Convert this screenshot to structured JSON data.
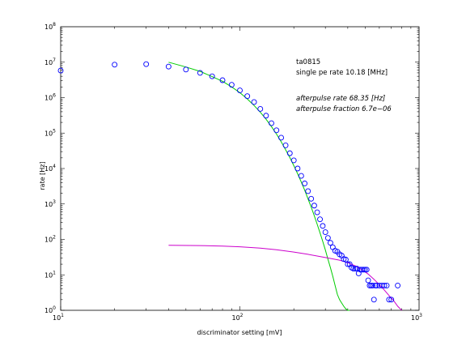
{
  "chart_data": {
    "type": "scatter",
    "xscale": "log",
    "yscale": "log",
    "xlim": [
      10,
      1000
    ],
    "ylim": [
      1,
      100000000
    ],
    "grid": false,
    "xlabel": "discriminator setting [mV]",
    "ylabel": "rate [Hz]",
    "x_ticks": [
      {
        "base": "10",
        "exp": "1",
        "value": 10
      },
      {
        "base": "10",
        "exp": "2",
        "value": 100
      },
      {
        "base": "10",
        "exp": "3",
        "value": 1000
      }
    ],
    "y_ticks": [
      {
        "base": "10",
        "exp": "0",
        "value": 1
      },
      {
        "base": "10",
        "exp": "1",
        "value": 10
      },
      {
        "base": "10",
        "exp": "2",
        "value": 100
      },
      {
        "base": "10",
        "exp": "3",
        "value": 1000
      },
      {
        "base": "10",
        "exp": "4",
        "value": 10000
      },
      {
        "base": "10",
        "exp": "5",
        "value": 100000
      },
      {
        "base": "10",
        "exp": "6",
        "value": 1000000
      },
      {
        "base": "10",
        "exp": "7",
        "value": 10000000
      },
      {
        "base": "10",
        "exp": "8",
        "value": 100000000
      }
    ],
    "annotations": [
      {
        "text": "ta0815",
        "italic": false
      },
      {
        "text": "single pe rate 10.18 [MHz]",
        "italic": false
      },
      {
        "text": "afterpulse rate 68.35 [Hz]",
        "italic": true
      },
      {
        "text": "afterpulse fraction 6.7e−06",
        "italic": true
      }
    ],
    "series": [
      {
        "kind": "markers",
        "color": "#0000ff",
        "x": [
          10,
          20,
          30,
          40,
          50,
          60,
          70,
          80,
          90,
          100,
          110,
          120,
          130,
          140,
          150,
          160,
          170,
          180,
          190,
          200,
          210,
          220,
          230,
          240,
          250,
          260,
          270,
          280,
          290,
          300,
          310,
          320,
          330,
          340,
          350,
          360,
          370,
          380,
          390,
          400,
          410,
          420,
          430,
          440,
          450,
          460,
          470,
          480,
          490,
          500,
          510,
          520,
          530,
          540,
          550,
          560,
          570,
          580,
          600,
          620,
          640,
          660,
          680,
          700,
          760
        ],
        "y": [
          5800000,
          8500000,
          8800000,
          7500000,
          6200000,
          5000000,
          4000000,
          3100000,
          2300000,
          1600000,
          1100000,
          750000,
          480000,
          310000,
          190000,
          120000,
          74000,
          45000,
          27000,
          17000,
          10000,
          6200,
          3800,
          2300,
          1400,
          900,
          580,
          370,
          240,
          160,
          110,
          80,
          60,
          48,
          45,
          38,
          35,
          28,
          27,
          20,
          20,
          16,
          15,
          15,
          15,
          11,
          14,
          14,
          14,
          14,
          14,
          7,
          5,
          5,
          5,
          2,
          5,
          5,
          5,
          5,
          5,
          5,
          2,
          2,
          5
        ]
      },
      {
        "kind": "line",
        "color": "#00cc00",
        "x": [
          40,
          50,
          60,
          70,
          80,
          90,
          100,
          110,
          120,
          130,
          140,
          150,
          160,
          170,
          180,
          190,
          200,
          210,
          220,
          230,
          240,
          250,
          260,
          270,
          280,
          290,
          300,
          310,
          320,
          330,
          340,
          350,
          360,
          370,
          380,
          390,
          400,
          410
        ],
        "y": [
          10000000,
          7300000,
          5500000,
          3900000,
          2900000,
          2000000,
          1380000,
          920000,
          600000,
          390000,
          245000,
          153000,
          94000,
          57000,
          34000,
          20500,
          12000,
          7100,
          4200,
          2450,
          1400,
          820,
          470,
          270,
          155,
          88,
          50,
          28,
          16,
          9,
          5,
          2.8,
          2.0,
          1.6,
          1.3,
          1.1,
          1.0,
          1.0
        ]
      },
      {
        "kind": "line",
        "color": "#cc00cc",
        "x": [
          40,
          60,
          80,
          100,
          130,
          160,
          200,
          240,
          280,
          320,
          360,
          400,
          440,
          480,
          520,
          560,
          600,
          640,
          680,
          720,
          760,
          800
        ],
        "y": [
          68,
          67,
          65,
          62,
          57,
          51,
          44,
          38,
          33,
          29,
          26,
          22,
          18,
          14,
          10.5,
          7.5,
          5.3,
          3.7,
          2.6,
          1.9,
          1.3,
          1.0
        ]
      }
    ]
  }
}
